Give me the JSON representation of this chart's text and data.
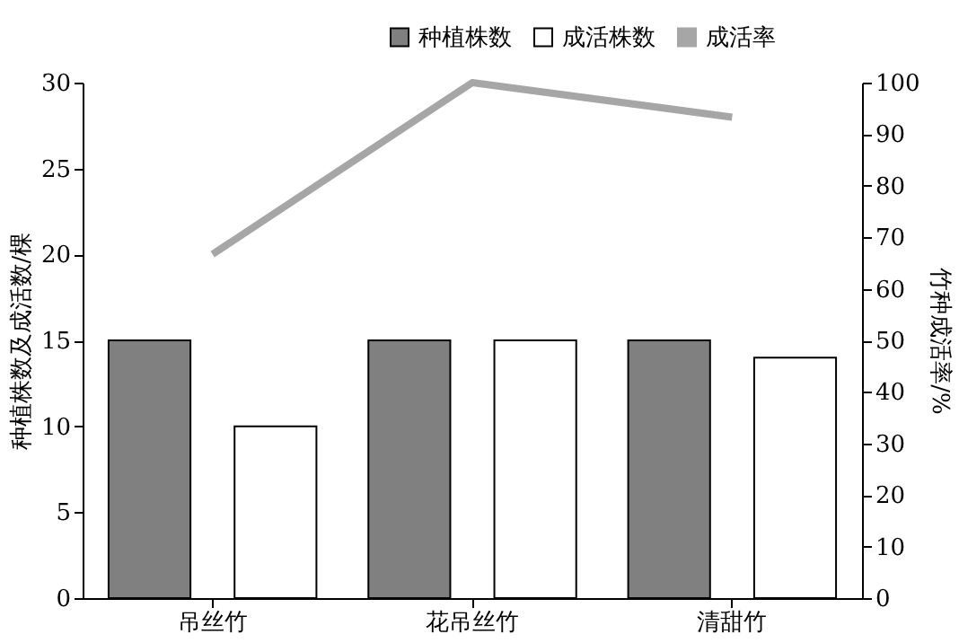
{
  "chart_data": {
    "type": "bar",
    "ylabel": "种植株数及成活数/棵",
    "y2label": "竹种成活率/%",
    "categories": [
      "吊丝竹",
      "花吊丝竹",
      "清甜竹"
    ],
    "series": [
      {
        "name": "种植株数",
        "color": "#808080",
        "values": [
          15,
          15,
          15
        ]
      },
      {
        "name": "成活株数",
        "color": "#ffffff",
        "values": [
          10,
          15,
          14
        ]
      },
      {
        "name": "成活率",
        "type": "line",
        "axis": "y2",
        "color": "#a6a6a6",
        "values": [
          66.7,
          100,
          93.3
        ]
      }
    ],
    "ylim": [
      0,
      30
    ],
    "yticks": [
      0,
      5,
      10,
      15,
      20,
      25,
      30
    ],
    "y2lim": [
      0,
      100
    ],
    "y2ticks": [
      0,
      10,
      20,
      30,
      40,
      50,
      60,
      70,
      80,
      90,
      100
    ],
    "grid": false,
    "legend": "top right",
    "marker": "none",
    "line_style": "solid"
  }
}
